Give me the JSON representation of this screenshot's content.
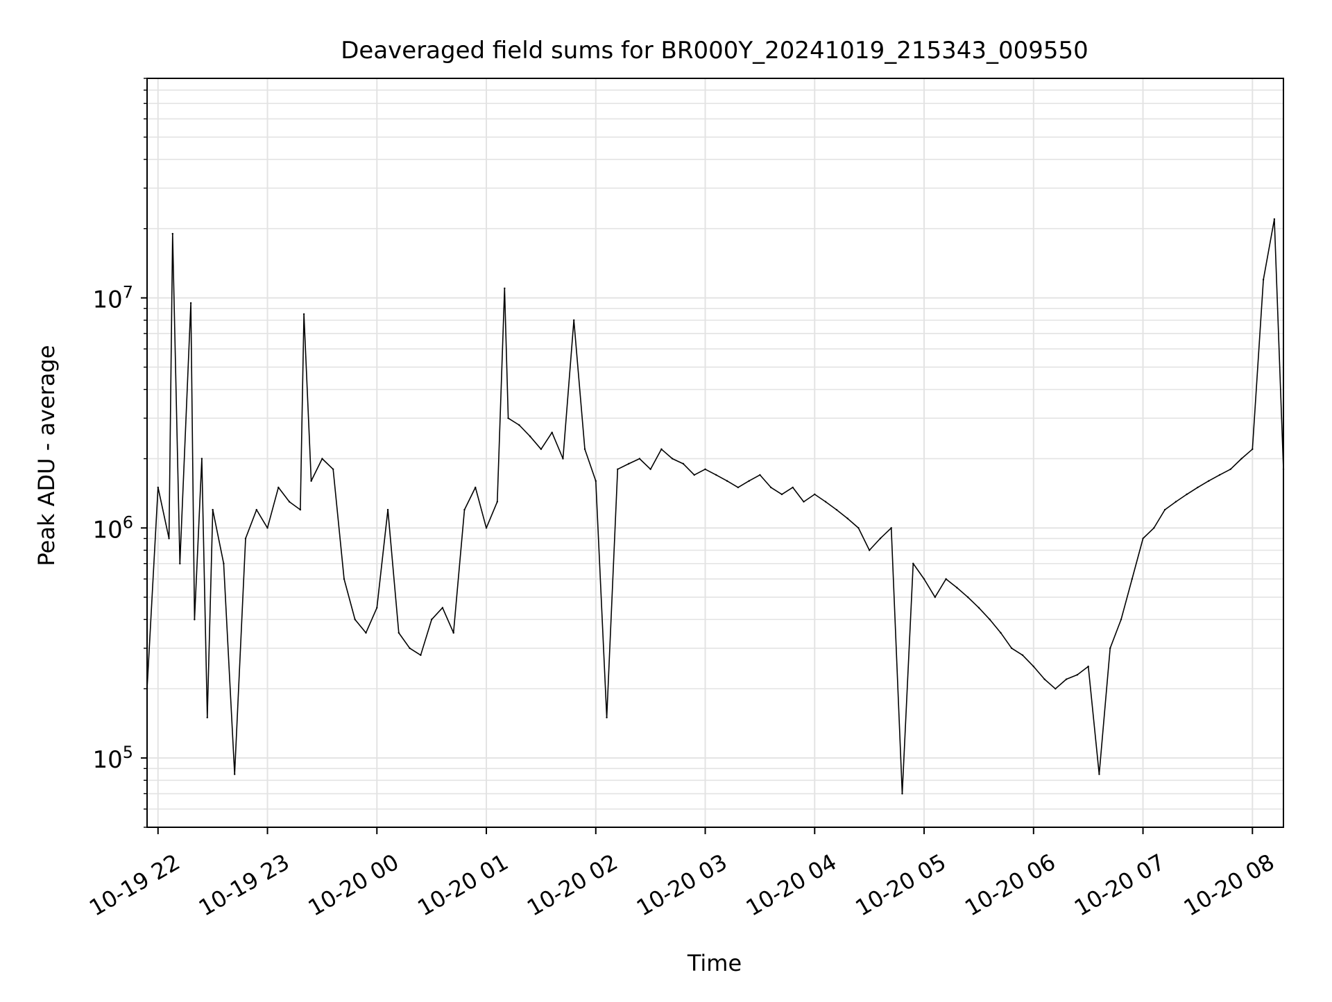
{
  "chart_data": {
    "type": "line",
    "title": "Deaveraged field sums for BR000Y_20241019_215343_009550",
    "xlabel": "Time",
    "ylabel": "Peak ADU - average",
    "xscale": "time",
    "yscale": "log",
    "xlim": [
      "2024-10-19 21:54",
      "2024-10-20 08:17"
    ],
    "ylim": [
      50000,
      90000000
    ],
    "grid": true,
    "legend": "none",
    "series_color": "#000000",
    "x_ticks": [
      {
        "value": "2024-10-19 22:00",
        "label": "10-19 22"
      },
      {
        "value": "2024-10-19 23:00",
        "label": "10-19 23"
      },
      {
        "value": "2024-10-20 00:00",
        "label": "10-20 00"
      },
      {
        "value": "2024-10-20 01:00",
        "label": "10-20 01"
      },
      {
        "value": "2024-10-20 02:00",
        "label": "10-20 02"
      },
      {
        "value": "2024-10-20 03:00",
        "label": "10-20 03"
      },
      {
        "value": "2024-10-20 04:00",
        "label": "10-20 04"
      },
      {
        "value": "2024-10-20 05:00",
        "label": "10-20 05"
      },
      {
        "value": "2024-10-20 06:00",
        "label": "10-20 06"
      },
      {
        "value": "2024-10-20 07:00",
        "label": "10-20 07"
      },
      {
        "value": "2024-10-20 08:00",
        "label": "10-20 08"
      }
    ],
    "y_ticks": [
      {
        "value": 100000,
        "base": "10",
        "exp": "5"
      },
      {
        "value": 1000000,
        "base": "10",
        "exp": "6"
      },
      {
        "value": 10000000,
        "base": "10",
        "exp": "7"
      }
    ],
    "series": [
      {
        "x": [
          "2024-10-19 21:54",
          "2024-10-19 22:00",
          "2024-10-19 22:06",
          "2024-10-19 22:08",
          "2024-10-19 22:12",
          "2024-10-19 22:18",
          "2024-10-19 22:20",
          "2024-10-19 22:24",
          "2024-10-19 22:27",
          "2024-10-19 22:30",
          "2024-10-19 22:36",
          "2024-10-19 22:42",
          "2024-10-19 22:48",
          "2024-10-19 22:54",
          "2024-10-19 23:00",
          "2024-10-19 23:06",
          "2024-10-19 23:12",
          "2024-10-19 23:18",
          "2024-10-19 23:20",
          "2024-10-19 23:24",
          "2024-10-19 23:30",
          "2024-10-19 23:36",
          "2024-10-19 23:42",
          "2024-10-19 23:48",
          "2024-10-19 23:54",
          "2024-10-20 00:00",
          "2024-10-20 00:06",
          "2024-10-20 00:12",
          "2024-10-20 00:18",
          "2024-10-20 00:24",
          "2024-10-20 00:30",
          "2024-10-20 00:36",
          "2024-10-20 00:42",
          "2024-10-20 00:48",
          "2024-10-20 00:54",
          "2024-10-20 01:00",
          "2024-10-20 01:06",
          "2024-10-20 01:10",
          "2024-10-20 01:12",
          "2024-10-20 01:18",
          "2024-10-20 01:24",
          "2024-10-20 01:30",
          "2024-10-20 01:36",
          "2024-10-20 01:42",
          "2024-10-20 01:48",
          "2024-10-20 01:54",
          "2024-10-20 02:00",
          "2024-10-20 02:06",
          "2024-10-20 02:12",
          "2024-10-20 02:18",
          "2024-10-20 02:24",
          "2024-10-20 02:30",
          "2024-10-20 02:36",
          "2024-10-20 02:42",
          "2024-10-20 02:48",
          "2024-10-20 02:54",
          "2024-10-20 03:00",
          "2024-10-20 03:06",
          "2024-10-20 03:12",
          "2024-10-20 03:18",
          "2024-10-20 03:24",
          "2024-10-20 03:30",
          "2024-10-20 03:36",
          "2024-10-20 03:42",
          "2024-10-20 03:48",
          "2024-10-20 03:54",
          "2024-10-20 04:00",
          "2024-10-20 04:06",
          "2024-10-20 04:12",
          "2024-10-20 04:18",
          "2024-10-20 04:24",
          "2024-10-20 04:30",
          "2024-10-20 04:36",
          "2024-10-20 04:42",
          "2024-10-20 04:48",
          "2024-10-20 04:54",
          "2024-10-20 05:00",
          "2024-10-20 05:06",
          "2024-10-20 05:12",
          "2024-10-20 05:18",
          "2024-10-20 05:24",
          "2024-10-20 05:30",
          "2024-10-20 05:36",
          "2024-10-20 05:42",
          "2024-10-20 05:48",
          "2024-10-20 05:54",
          "2024-10-20 06:00",
          "2024-10-20 06:06",
          "2024-10-20 06:12",
          "2024-10-20 06:18",
          "2024-10-20 06:24",
          "2024-10-20 06:30",
          "2024-10-20 06:36",
          "2024-10-20 06:42",
          "2024-10-20 06:48",
          "2024-10-20 06:54",
          "2024-10-20 07:00",
          "2024-10-20 07:06",
          "2024-10-20 07:12",
          "2024-10-20 07:18",
          "2024-10-20 07:24",
          "2024-10-20 07:30",
          "2024-10-20 07:36",
          "2024-10-20 07:42",
          "2024-10-20 07:48",
          "2024-10-20 07:54",
          "2024-10-20 08:00",
          "2024-10-20 08:06",
          "2024-10-20 08:12",
          "2024-10-20 08:17"
        ],
        "y": [
          200000,
          1500000,
          900000,
          19000000,
          700000,
          9500000,
          400000,
          2000000,
          150000,
          1200000,
          700000,
          85000,
          900000,
          1200000,
          1000000,
          1500000,
          1300000,
          1200000,
          8500000,
          1600000,
          2000000,
          1800000,
          600000,
          400000,
          350000,
          450000,
          1200000,
          350000,
          300000,
          280000,
          400000,
          450000,
          350000,
          1200000,
          1500000,
          1000000,
          1300000,
          11000000,
          3000000,
          2800000,
          2500000,
          2200000,
          2600000,
          2000000,
          8000000,
          2200000,
          1600000,
          150000,
          1800000,
          1900000,
          2000000,
          1800000,
          2200000,
          2000000,
          1900000,
          1700000,
          1800000,
          1700000,
          1600000,
          1500000,
          1600000,
          1700000,
          1500000,
          1400000,
          1500000,
          1300000,
          1400000,
          1300000,
          1200000,
          1100000,
          1000000,
          800000,
          900000,
          1000000,
          70000,
          700000,
          600000,
          500000,
          600000,
          550000,
          500000,
          450000,
          400000,
          350000,
          300000,
          280000,
          250000,
          220000,
          200000,
          220000,
          230000,
          250000,
          85000,
          300000,
          400000,
          600000,
          900000,
          1000000,
          1200000,
          1300000,
          1400000,
          1500000,
          1600000,
          1700000,
          1800000,
          2000000,
          2200000,
          12000000,
          22000000,
          1800000
        ]
      }
    ]
  }
}
